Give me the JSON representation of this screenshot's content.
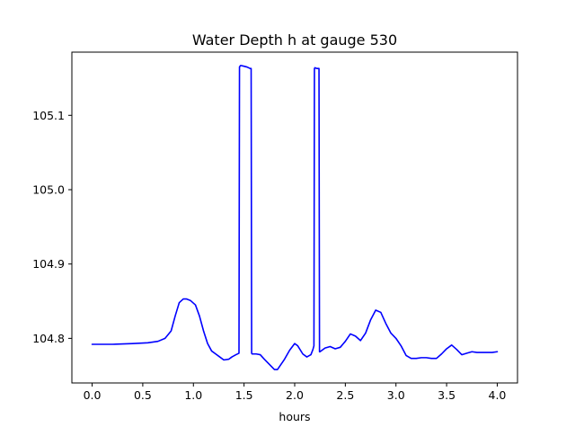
{
  "chart_data": {
    "type": "line",
    "title": "Water Depth h at gauge 530",
    "xlabel": "hours",
    "ylabel": "",
    "xlim": [
      -0.2,
      4.2
    ],
    "ylim": [
      104.74,
      105.185
    ],
    "x_ticks": [
      0.0,
      0.5,
      1.0,
      1.5,
      2.0,
      2.5,
      3.0,
      3.5,
      4.0
    ],
    "x_tick_labels": [
      "0.0",
      "0.5",
      "1.0",
      "1.5",
      "2.0",
      "2.5",
      "3.0",
      "3.5",
      "4.0"
    ],
    "y_ticks": [
      104.8,
      104.9,
      105.0,
      105.1
    ],
    "y_tick_labels": [
      "104.8",
      "104.9",
      "105.0",
      "105.1"
    ],
    "grid": false,
    "series": [
      {
        "color": "#0000ff",
        "x": [
          0.0,
          0.2,
          0.4,
          0.55,
          0.65,
          0.72,
          0.78,
          0.82,
          0.86,
          0.9,
          0.93,
          0.97,
          1.02,
          1.06,
          1.1,
          1.14,
          1.18,
          1.22,
          1.26,
          1.3,
          1.35,
          1.38,
          1.42,
          1.45,
          1.455,
          1.46,
          1.465,
          1.47,
          1.5,
          1.53,
          1.56,
          1.57,
          1.575,
          1.58,
          1.62,
          1.66,
          1.7,
          1.75,
          1.8,
          1.83,
          1.9,
          1.95,
          2.0,
          2.03,
          2.08,
          2.12,
          2.16,
          2.18,
          2.19,
          2.195,
          2.2,
          2.22,
          2.24,
          2.245,
          2.25,
          2.3,
          2.35,
          2.4,
          2.45,
          2.5,
          2.55,
          2.6,
          2.65,
          2.7,
          2.75,
          2.8,
          2.85,
          2.9,
          2.95,
          3.0,
          3.05,
          3.1,
          3.15,
          3.2,
          3.25,
          3.3,
          3.35,
          3.4,
          3.45,
          3.5,
          3.55,
          3.6,
          3.65,
          3.7,
          3.75,
          3.8,
          3.85,
          3.9,
          3.95,
          4.0
        ],
        "y": [
          104.792,
          104.792,
          104.793,
          104.794,
          104.796,
          104.8,
          104.81,
          104.83,
          104.848,
          104.853,
          104.853,
          104.851,
          104.845,
          104.83,
          104.81,
          104.793,
          104.783,
          104.779,
          104.775,
          104.771,
          104.772,
          104.775,
          104.778,
          104.78,
          105.165,
          105.166,
          105.167,
          105.167,
          105.166,
          105.165,
          105.163,
          105.163,
          104.78,
          104.779,
          104.779,
          104.778,
          104.772,
          104.765,
          104.758,
          104.758,
          104.772,
          104.784,
          104.793,
          104.79,
          104.779,
          104.775,
          104.778,
          104.785,
          104.79,
          105.163,
          105.164,
          105.163,
          105.163,
          104.782,
          104.782,
          104.787,
          104.789,
          104.786,
          104.788,
          104.796,
          104.806,
          104.803,
          104.797,
          104.807,
          104.825,
          104.838,
          104.835,
          104.82,
          104.807,
          104.8,
          104.79,
          104.777,
          104.773,
          104.773,
          104.774,
          104.774,
          104.773,
          104.773,
          104.779,
          104.786,
          104.791,
          104.785,
          104.778,
          104.78,
          104.782,
          104.781,
          104.781,
          104.781,
          104.781,
          104.782
        ]
      }
    ]
  }
}
